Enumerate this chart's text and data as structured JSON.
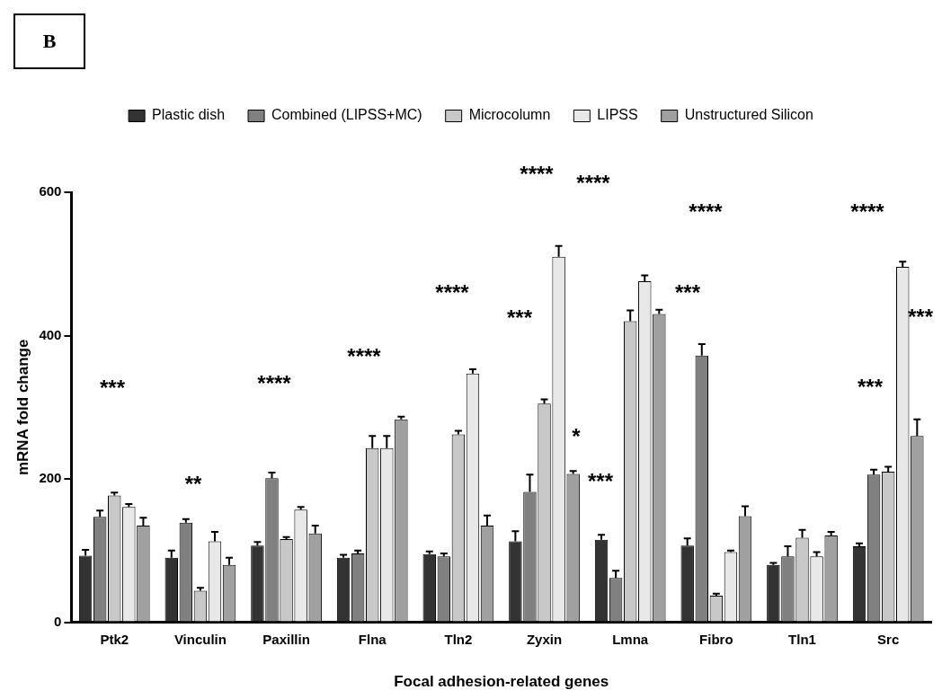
{
  "chart_data": {
    "type": "bar",
    "xlabel": "Focal adhesion-related genes",
    "ylabel": "mRNA fold change",
    "categories": [
      "Ptk2",
      "Vinculin",
      "Paxillin",
      "Flna",
      "Tln2",
      "Zyxin",
      "Lmna",
      "Fibro",
      "Tln1",
      "Src"
    ],
    "series": [
      {
        "name": "Plastic dish",
        "color": "#333333",
        "values": [
          93,
          90,
          107,
          90,
          95,
          113,
          115,
          107,
          80,
          106
        ],
        "errors": [
          [
            93,
            101
          ],
          [
            90,
            100
          ],
          [
            107,
            112
          ],
          [
            90,
            94
          ],
          [
            95,
            99
          ],
          [
            113,
            127
          ],
          [
            115,
            122
          ],
          [
            107,
            117
          ],
          [
            80,
            83
          ],
          [
            106,
            110
          ]
        ]
      },
      {
        "name": "Combined (LIPSS+MC)",
        "color": "#808080",
        "values": [
          147,
          139,
          201,
          96,
          92,
          182,
          62,
          372,
          92,
          206
        ],
        "errors": [
          [
            147,
            156
          ],
          [
            139,
            144
          ],
          [
            201,
            209
          ],
          [
            96,
            100
          ],
          [
            92,
            96
          ],
          [
            182,
            206
          ],
          [
            62,
            72
          ],
          [
            372,
            388
          ],
          [
            92,
            106
          ],
          [
            206,
            213
          ]
        ]
      },
      {
        "name": "Microcolumn",
        "color": "#c8c8c8",
        "values": [
          177,
          44,
          116,
          243,
          262,
          305,
          420,
          37,
          118,
          210
        ],
        "errors": [
          [
            177,
            181
          ],
          [
            44,
            48
          ],
          [
            116,
            119
          ],
          [
            243,
            260
          ],
          [
            262,
            267
          ],
          [
            305,
            311
          ],
          [
            420,
            435
          ],
          [
            37,
            40
          ],
          [
            118,
            129
          ],
          [
            210,
            217
          ]
        ]
      },
      {
        "name": "LIPSS",
        "color": "#e8e8e8",
        "values": [
          161,
          113,
          157,
          243,
          347,
          510,
          476,
          98,
          92,
          496
        ],
        "errors": [
          [
            161,
            165
          ],
          [
            113,
            126
          ],
          [
            157,
            161
          ],
          [
            243,
            260
          ],
          [
            347,
            353
          ],
          [
            510,
            525
          ],
          [
            476,
            484
          ],
          [
            98,
            100
          ],
          [
            92,
            98
          ],
          [
            496,
            503
          ]
        ]
      },
      {
        "name": "Unstructured Silicon",
        "color": "#a0a0a0",
        "values": [
          135,
          80,
          124,
          283,
          135,
          207,
          430,
          148,
          121,
          260
        ],
        "errors": [
          [
            135,
            146
          ],
          [
            80,
            90
          ],
          [
            124,
            135
          ],
          [
            283,
            287
          ],
          [
            135,
            149
          ],
          [
            207,
            211
          ],
          [
            430,
            436
          ],
          [
            148,
            162
          ],
          [
            121,
            126
          ],
          [
            260,
            283
          ]
        ]
      }
    ],
    "ylim": [
      0,
      600
    ],
    "yticks": [
      0,
      200,
      400,
      600
    ],
    "grid": false,
    "legend": "top",
    "annotations": [
      "B",
      "***",
      "**",
      "****",
      "****",
      "****",
      "****",
      "***",
      "*",
      "****",
      "***",
      "****",
      "***",
      "****",
      "***",
      "***"
    ]
  }
}
